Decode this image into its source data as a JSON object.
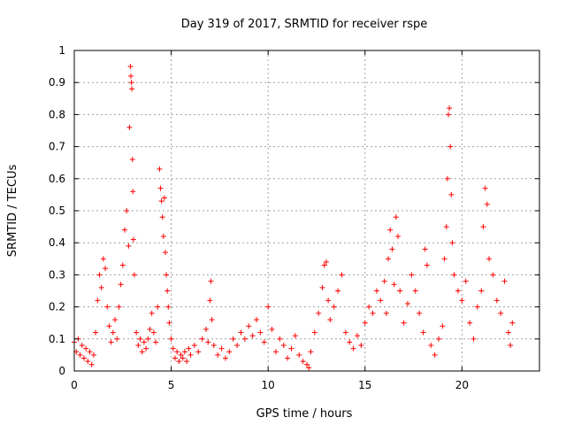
{
  "chart_data": {
    "type": "scatter",
    "title": "Day 319 of 2017, SRMTID for receiver rspe",
    "xlabel": "GPS time / hours",
    "ylabel": "SRMTID / TECUs",
    "xlim": [
      0,
      24
    ],
    "ylim": [
      0,
      1
    ],
    "x_ticks": [
      0,
      5,
      10,
      15,
      20
    ],
    "x_tick_labels": [
      "0",
      "5",
      "10",
      "15",
      "20"
    ],
    "y_ticks": [
      0,
      0.1,
      0.2,
      0.3,
      0.4,
      0.5,
      0.6,
      0.7,
      0.8,
      0.9,
      1
    ],
    "y_tick_labels": [
      "0",
      "0.1",
      "0.2",
      "0.3",
      "0.4",
      "0.5",
      "0.6",
      "0.7",
      "0.8",
      "0.9",
      "1"
    ],
    "grid": true,
    "marker": "+",
    "color": "#ff0000",
    "series": [
      {
        "name": "SRMTID",
        "points": [
          [
            0.0,
            0.09
          ],
          [
            0.1,
            0.06
          ],
          [
            0.2,
            0.1
          ],
          [
            0.3,
            0.05
          ],
          [
            0.4,
            0.08
          ],
          [
            0.5,
            0.04
          ],
          [
            0.6,
            0.07
          ],
          [
            0.7,
            0.03
          ],
          [
            0.8,
            0.06
          ],
          [
            0.9,
            0.02
          ],
          [
            1.0,
            0.05
          ],
          [
            1.1,
            0.12
          ],
          [
            1.2,
            0.22
          ],
          [
            1.3,
            0.3
          ],
          [
            1.4,
            0.26
          ],
          [
            1.5,
            0.35
          ],
          [
            1.6,
            0.32
          ],
          [
            1.7,
            0.2
          ],
          [
            1.8,
            0.14
          ],
          [
            1.9,
            0.09
          ],
          [
            2.0,
            0.12
          ],
          [
            2.1,
            0.16
          ],
          [
            2.2,
            0.1
          ],
          [
            2.3,
            0.2
          ],
          [
            2.4,
            0.27
          ],
          [
            2.5,
            0.33
          ],
          [
            2.6,
            0.44
          ],
          [
            2.7,
            0.5
          ],
          [
            2.8,
            0.39
          ],
          [
            2.85,
            0.76
          ],
          [
            2.9,
            0.95
          ],
          [
            2.92,
            0.92
          ],
          [
            2.95,
            0.9
          ],
          [
            2.97,
            0.88
          ],
          [
            3.0,
            0.66
          ],
          [
            3.02,
            0.56
          ],
          [
            3.05,
            0.41
          ],
          [
            3.1,
            0.3
          ],
          [
            3.2,
            0.12
          ],
          [
            3.3,
            0.08
          ],
          [
            3.4,
            0.1
          ],
          [
            3.5,
            0.06
          ],
          [
            3.6,
            0.09
          ],
          [
            3.7,
            0.07
          ],
          [
            3.8,
            0.1
          ],
          [
            3.9,
            0.13
          ],
          [
            4.0,
            0.18
          ],
          [
            4.1,
            0.12
          ],
          [
            4.2,
            0.09
          ],
          [
            4.3,
            0.2
          ],
          [
            4.4,
            0.63
          ],
          [
            4.45,
            0.57
          ],
          [
            4.5,
            0.53
          ],
          [
            4.55,
            0.48
          ],
          [
            4.6,
            0.42
          ],
          [
            4.65,
            0.54
          ],
          [
            4.7,
            0.37
          ],
          [
            4.75,
            0.3
          ],
          [
            4.8,
            0.25
          ],
          [
            4.85,
            0.2
          ],
          [
            4.9,
            0.15
          ],
          [
            5.0,
            0.1
          ],
          [
            5.1,
            0.07
          ],
          [
            5.2,
            0.04
          ],
          [
            5.3,
            0.06
          ],
          [
            5.4,
            0.03
          ],
          [
            5.5,
            0.05
          ],
          [
            5.6,
            0.04
          ],
          [
            5.7,
            0.06
          ],
          [
            5.8,
            0.03
          ],
          [
            5.9,
            0.07
          ],
          [
            6.0,
            0.05
          ],
          [
            6.2,
            0.08
          ],
          [
            6.4,
            0.06
          ],
          [
            6.6,
            0.1
          ],
          [
            6.8,
            0.13
          ],
          [
            6.9,
            0.09
          ],
          [
            7.0,
            0.22
          ],
          [
            7.05,
            0.28
          ],
          [
            7.1,
            0.16
          ],
          [
            7.2,
            0.08
          ],
          [
            7.4,
            0.05
          ],
          [
            7.6,
            0.07
          ],
          [
            7.8,
            0.04
          ],
          [
            8.0,
            0.06
          ],
          [
            8.2,
            0.1
          ],
          [
            8.4,
            0.08
          ],
          [
            8.6,
            0.12
          ],
          [
            8.8,
            0.1
          ],
          [
            9.0,
            0.14
          ],
          [
            9.2,
            0.11
          ],
          [
            9.4,
            0.16
          ],
          [
            9.6,
            0.12
          ],
          [
            9.8,
            0.09
          ],
          [
            10.0,
            0.2
          ],
          [
            10.2,
            0.13
          ],
          [
            10.4,
            0.06
          ],
          [
            10.6,
            0.1
          ],
          [
            10.8,
            0.08
          ],
          [
            11.0,
            0.04
          ],
          [
            11.2,
            0.07
          ],
          [
            11.4,
            0.11
          ],
          [
            11.6,
            0.05
          ],
          [
            11.8,
            0.03
          ],
          [
            12.0,
            0.02
          ],
          [
            12.1,
            0.01
          ],
          [
            12.2,
            0.06
          ],
          [
            12.4,
            0.12
          ],
          [
            12.6,
            0.18
          ],
          [
            12.8,
            0.26
          ],
          [
            12.9,
            0.33
          ],
          [
            13.0,
            0.34
          ],
          [
            13.1,
            0.22
          ],
          [
            13.2,
            0.16
          ],
          [
            13.4,
            0.2
          ],
          [
            13.6,
            0.25
          ],
          [
            13.8,
            0.3
          ],
          [
            14.0,
            0.12
          ],
          [
            14.2,
            0.09
          ],
          [
            14.4,
            0.07
          ],
          [
            14.6,
            0.11
          ],
          [
            14.8,
            0.08
          ],
          [
            15.0,
            0.15
          ],
          [
            15.2,
            0.2
          ],
          [
            15.4,
            0.18
          ],
          [
            15.6,
            0.25
          ],
          [
            15.8,
            0.22
          ],
          [
            16.0,
            0.28
          ],
          [
            16.1,
            0.18
          ],
          [
            16.2,
            0.35
          ],
          [
            16.3,
            0.44
          ],
          [
            16.4,
            0.38
          ],
          [
            16.5,
            0.27
          ],
          [
            16.6,
            0.48
          ],
          [
            16.7,
            0.42
          ],
          [
            16.8,
            0.25
          ],
          [
            17.0,
            0.15
          ],
          [
            17.2,
            0.21
          ],
          [
            17.4,
            0.3
          ],
          [
            17.6,
            0.25
          ],
          [
            17.8,
            0.18
          ],
          [
            18.0,
            0.12
          ],
          [
            18.1,
            0.38
          ],
          [
            18.2,
            0.33
          ],
          [
            18.4,
            0.08
          ],
          [
            18.6,
            0.05
          ],
          [
            18.8,
            0.1
          ],
          [
            19.0,
            0.14
          ],
          [
            19.1,
            0.35
          ],
          [
            19.2,
            0.45
          ],
          [
            19.25,
            0.6
          ],
          [
            19.3,
            0.8
          ],
          [
            19.35,
            0.82
          ],
          [
            19.4,
            0.7
          ],
          [
            19.45,
            0.55
          ],
          [
            19.5,
            0.4
          ],
          [
            19.6,
            0.3
          ],
          [
            19.8,
            0.25
          ],
          [
            20.0,
            0.22
          ],
          [
            20.2,
            0.28
          ],
          [
            20.4,
            0.15
          ],
          [
            20.6,
            0.1
          ],
          [
            20.8,
            0.2
          ],
          [
            21.0,
            0.25
          ],
          [
            21.1,
            0.45
          ],
          [
            21.2,
            0.57
          ],
          [
            21.3,
            0.52
          ],
          [
            21.4,
            0.35
          ],
          [
            21.6,
            0.3
          ],
          [
            21.8,
            0.22
          ],
          [
            22.0,
            0.18
          ],
          [
            22.2,
            0.28
          ],
          [
            22.4,
            0.12
          ],
          [
            22.5,
            0.08
          ],
          [
            22.6,
            0.15
          ]
        ]
      }
    ]
  }
}
